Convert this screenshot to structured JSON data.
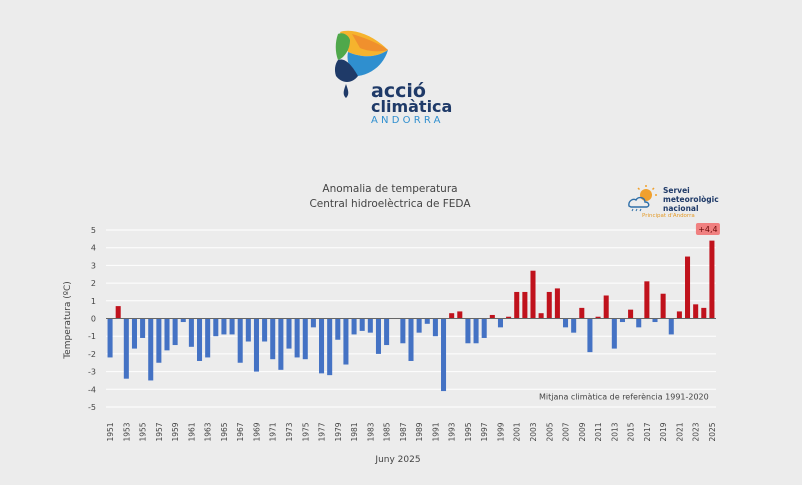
{
  "logo": {
    "line1": "acció",
    "line2": "climàtica",
    "line3": "ANDORRA",
    "colors": [
      "#f6b32d",
      "#f0902d",
      "#4fa84b",
      "#2f8fcf",
      "#1f3a68"
    ]
  },
  "smn_logo": {
    "name": "Servei meteorològic nacional",
    "sub": "Principat d'Andorra",
    "icon": "sun-cloud-icon"
  },
  "chart_data": {
    "type": "bar",
    "title": "Anomalia de temperatura",
    "subtitle": "Central hidroelèctrica de FEDA",
    "ylabel": "Temperatura (ºC)",
    "xlabel": "Juny 2025",
    "ylim": [
      -5,
      5
    ],
    "yticks": [
      "-5",
      "-4",
      "-3",
      "-2",
      "-1",
      "0",
      "1",
      "2",
      "3",
      "4",
      "5"
    ],
    "reference_label": "Mitjana climàtica de referència 1991-2020",
    "max_label": "+4,4",
    "positive_color": "#c0121c",
    "negative_color": "#4472c4",
    "x_tick_labels": [
      "1951",
      "1953",
      "1955",
      "1957",
      "1959",
      "1961",
      "1963",
      "1965",
      "1967",
      "1969",
      "1971",
      "1973",
      "1975",
      "1977",
      "1979",
      "1981",
      "1983",
      "1985",
      "1987",
      "1989",
      "1991",
      "1993",
      "1995",
      "1997",
      "1999",
      "2001",
      "2003",
      "2005",
      "2007",
      "2009",
      "2011",
      "2013",
      "2015",
      "2017",
      "2019",
      "2021",
      "2023",
      "2025"
    ],
    "years": [
      1951,
      1952,
      1953,
      1954,
      1955,
      1956,
      1957,
      1958,
      1959,
      1960,
      1961,
      1962,
      1963,
      1964,
      1965,
      1966,
      1967,
      1968,
      1969,
      1970,
      1971,
      1972,
      1973,
      1974,
      1975,
      1976,
      1977,
      1978,
      1979,
      1980,
      1981,
      1982,
      1983,
      1984,
      1985,
      1986,
      1987,
      1988,
      1989,
      1990,
      1991,
      1992,
      1993,
      1994,
      1995,
      1996,
      1997,
      1998,
      1999,
      2000,
      2001,
      2002,
      2003,
      2004,
      2005,
      2006,
      2007,
      2008,
      2009,
      2010,
      2011,
      2012,
      2013,
      2014,
      2015,
      2016,
      2017,
      2018,
      2019,
      2020,
      2021,
      2022,
      2023,
      2024,
      2025
    ],
    "values": [
      -2.2,
      0.7,
      -3.4,
      -1.7,
      -1.1,
      -3.5,
      -2.5,
      -1.8,
      -1.5,
      -0.2,
      -1.6,
      -2.4,
      -2.2,
      -1.0,
      -0.9,
      -0.9,
      -2.5,
      -1.3,
      -3.0,
      -1.3,
      -2.3,
      -2.9,
      -1.7,
      -2.2,
      -2.3,
      -0.5,
      -3.1,
      -3.2,
      -1.2,
      -2.6,
      -0.9,
      -0.7,
      -0.8,
      -2.0,
      -1.5,
      0.0,
      -1.4,
      -2.4,
      -0.8,
      -0.3,
      -1.0,
      -4.1,
      0.3,
      0.4,
      -1.4,
      -1.4,
      -1.1,
      0.2,
      -0.5,
      0.1,
      1.5,
      1.5,
      2.7,
      0.3,
      1.5,
      1.7,
      -0.5,
      -0.8,
      0.6,
      -1.9,
      0.1,
      1.3,
      -1.7,
      -0.2,
      0.5,
      -0.5,
      2.1,
      -0.2,
      1.4,
      -0.9,
      0.4,
      3.5,
      0.8,
      0.6,
      4.4
    ]
  }
}
